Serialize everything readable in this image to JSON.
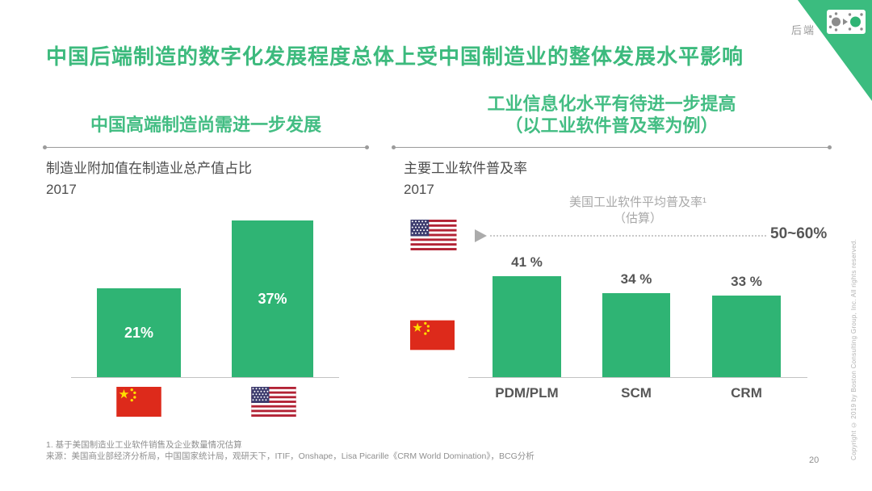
{
  "page": {
    "corner_tag": "后端",
    "title": "中国后端制造的数字化发展程度总体上受中国制造业的整体发展水平影响",
    "page_number": "20",
    "copyright": "Copyright © 2019 by Boston Consulting Group, Inc.  All  rights reserved."
  },
  "left_section": {
    "heading": "中国高端制造尚需进一步发展",
    "chart_title": "制造业附加值在制造业总产值占比",
    "chart_year": "2017"
  },
  "right_section": {
    "heading_line1": "工业信息化水平有待进一步提高",
    "heading_line2": "（以工业软件普及率为例）",
    "chart_title": "主要工业软件普及率",
    "chart_year": "2017",
    "reference": {
      "label_line1": "美国工业软件平均普及率¹",
      "label_line2": "（估算）",
      "value": "50~60%"
    }
  },
  "footnotes": {
    "note1": "1. 基于美国制造业工业软件销售及企业数量情况估算",
    "source": "来源：美国商业部经济分析局，中国国家统计局，观研天下，ITIF，Onshape，Lisa Picarille《CRM World Domination》，BCG分析"
  },
  "colors": {
    "green_bar": "#2fb474",
    "green_heading": "#3cba7d",
    "green_corner": "#3bbc7f",
    "text_dark": "#565656",
    "text_gray": "#8f8f8f",
    "flag_red": "#dd2a1b",
    "flag_us_red": "#b22234",
    "flag_us_blue": "#3c3b6e"
  },
  "chart_data": [
    {
      "type": "bar",
      "title": "制造业附加值在制造业总产值占比",
      "year": "2017",
      "categories": [
        "中国",
        "美国"
      ],
      "values": [
        21,
        37
      ],
      "unit": "%",
      "value_labels": [
        "21%",
        "37%"
      ],
      "ylim": [
        0,
        40
      ],
      "notes": "value labels rendered in white inside bars; categories shown as country flags"
    },
    {
      "type": "bar",
      "title": "主要工业软件普及率",
      "year": "2017",
      "categories": [
        "PDM/PLM",
        "SCM",
        "CRM"
      ],
      "values": [
        41,
        34,
        33
      ],
      "unit": "%",
      "value_labels": [
        "41 %",
        "34 %",
        "33 %"
      ],
      "ylim": [
        0,
        68
      ],
      "reference_line": {
        "label": "美国工业软件平均普及率¹（估算）",
        "value_range": "50~60%",
        "style": "dotted"
      },
      "notes": "China flag marks the bar series; US flag marks the dotted reference level"
    }
  ]
}
